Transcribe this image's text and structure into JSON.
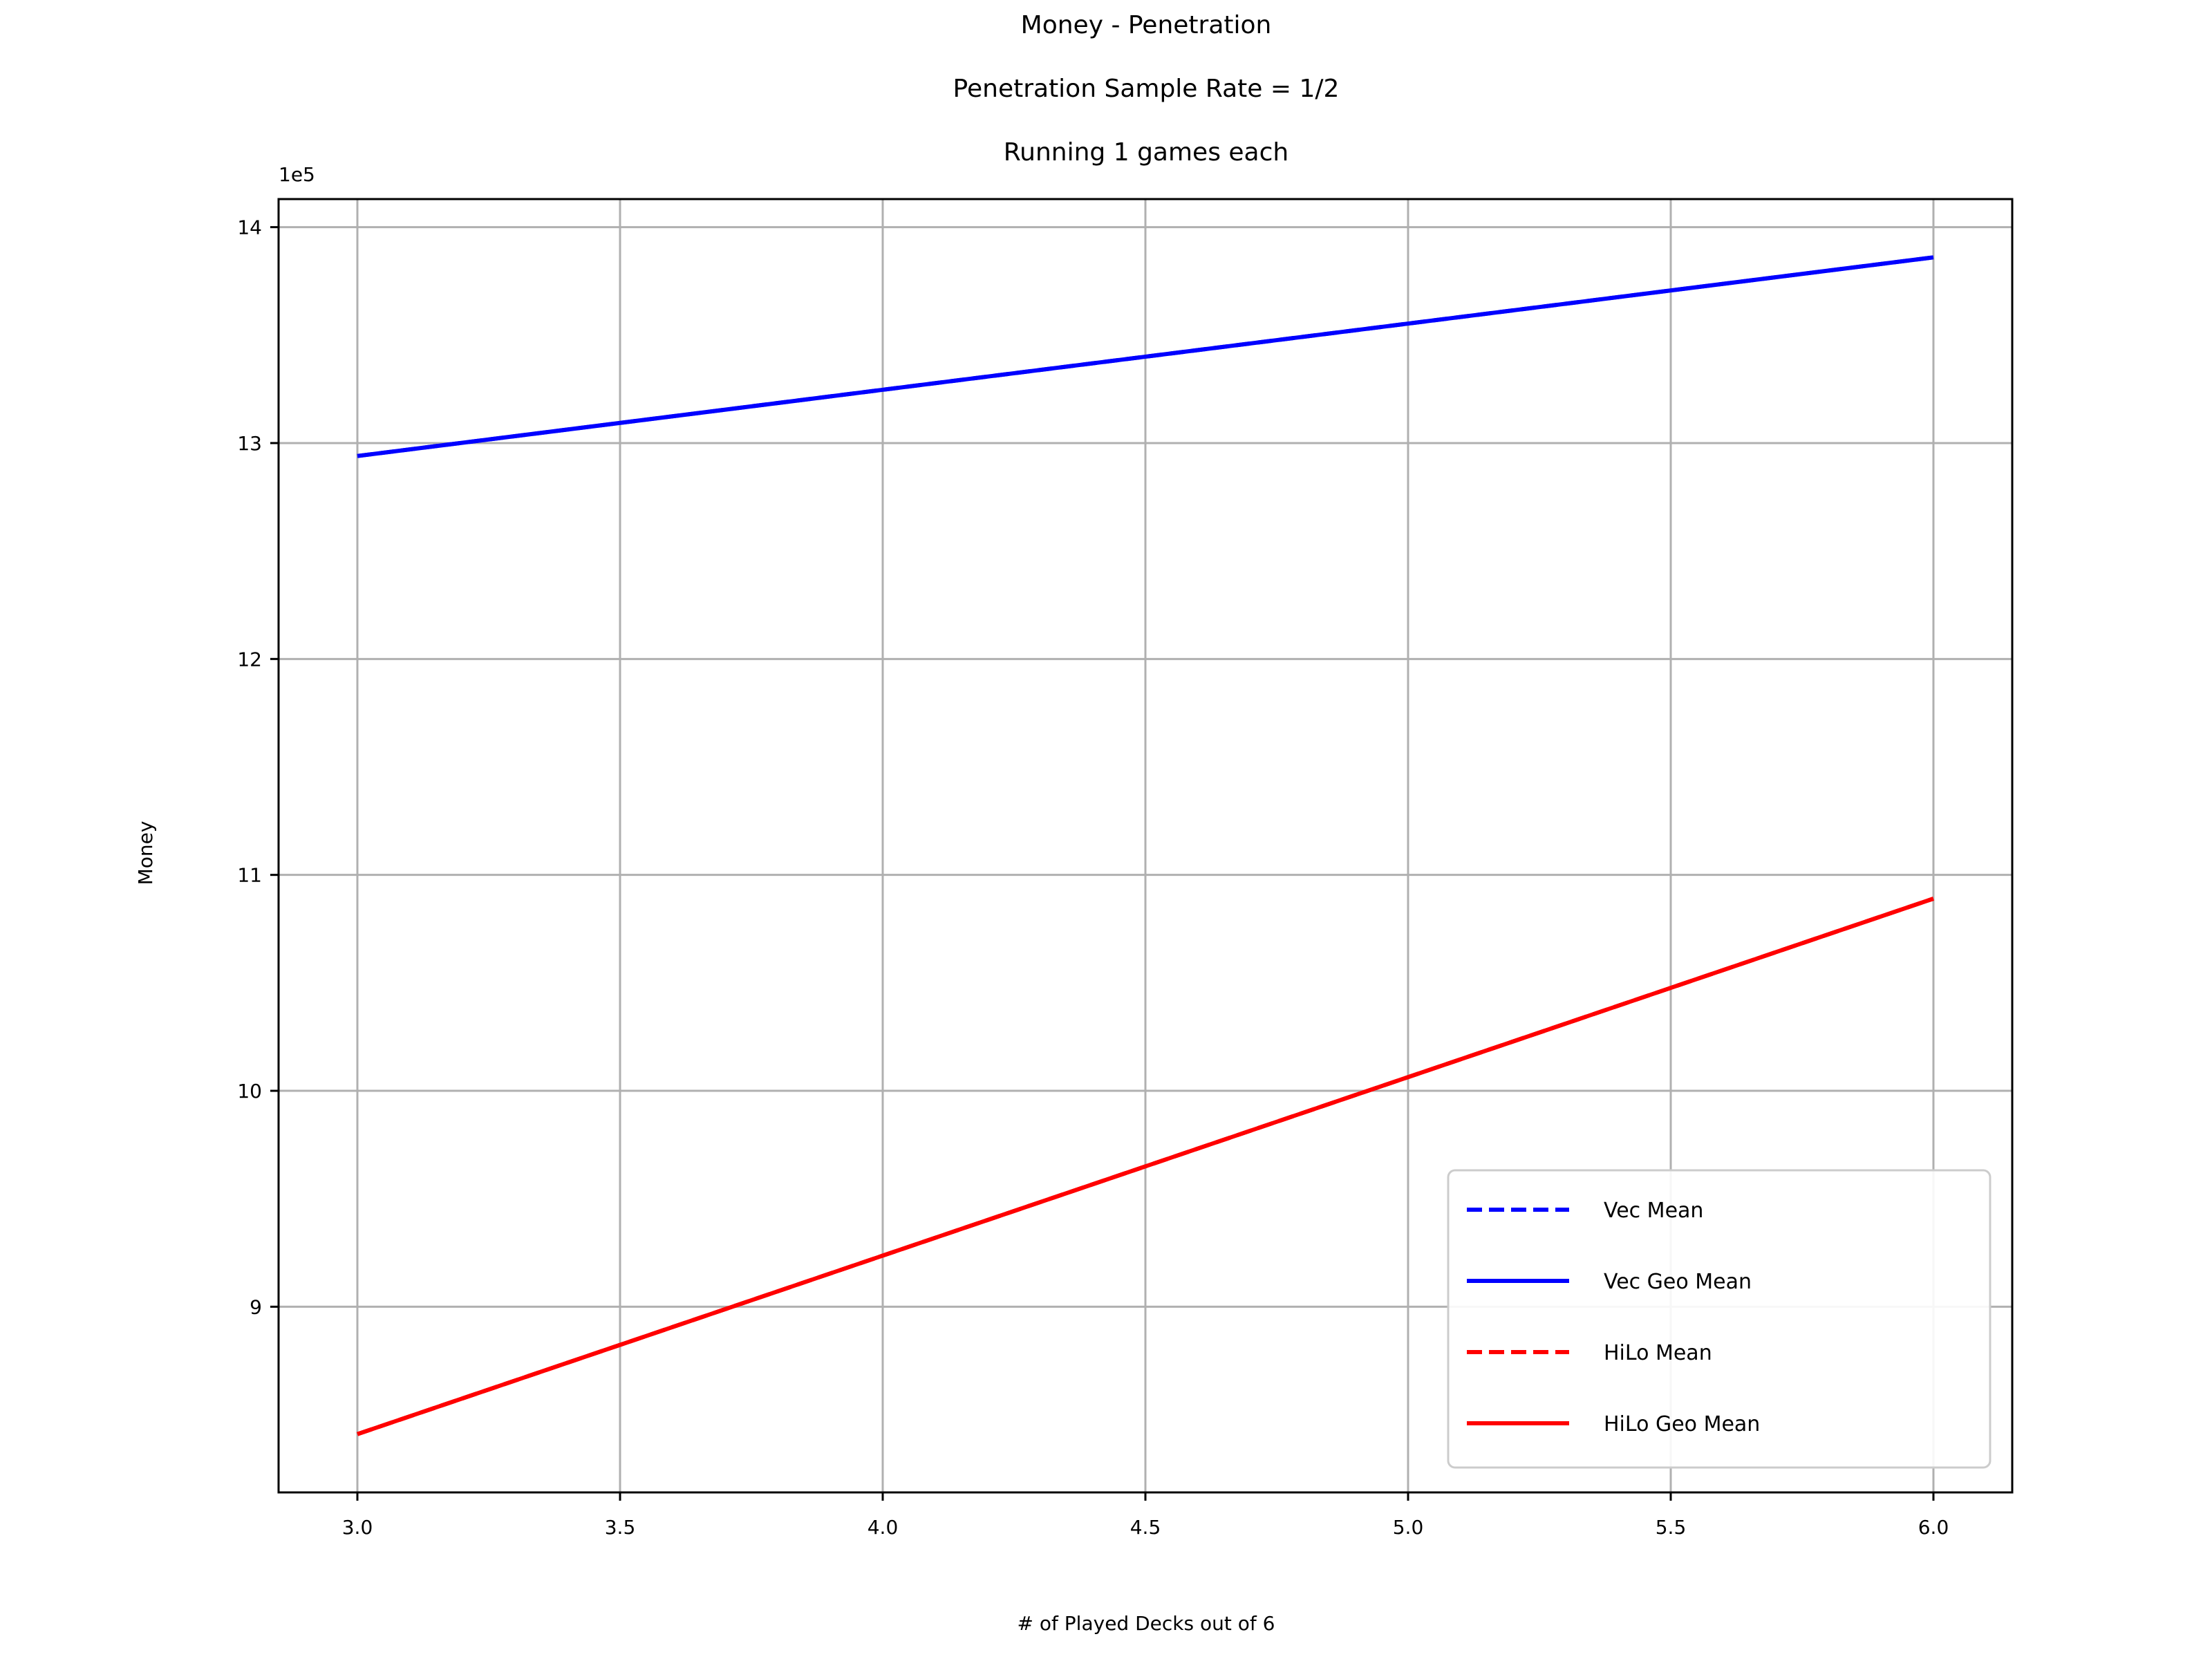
{
  "chart_data": {
    "type": "line",
    "title": [
      "Money - Penetration",
      "Penetration Sample Rate = 1/2",
      "Running 1 games each"
    ],
    "xlabel": "# of Played Decks out of 6",
    "ylabel": "Money",
    "y_offset_text": "1e5",
    "xlim": [
      2.85,
      6.15
    ],
    "ylim": [
      8.14,
      14.13
    ],
    "x_ticks": [
      3.0,
      3.5,
      4.0,
      4.5,
      5.0,
      5.5,
      6.0
    ],
    "x_tick_labels": [
      "3.0",
      "3.5",
      "4.0",
      "4.5",
      "5.0",
      "5.5",
      "6.0"
    ],
    "y_ticks": [
      9,
      10,
      11,
      12,
      13,
      14
    ],
    "y_tick_labels": [
      "9",
      "10",
      "11",
      "12",
      "13",
      "14"
    ],
    "grid": true,
    "legend_position": "lower-right",
    "series": [
      {
        "name": "Vec Mean",
        "color": "#0000ff",
        "style": "dashed",
        "x": [
          3,
          6
        ],
        "values": [
          12.94,
          13.86
        ]
      },
      {
        "name": "Vec Geo Mean",
        "color": "#0000ff",
        "style": "solid",
        "x": [
          3,
          6
        ],
        "values": [
          12.94,
          13.86
        ]
      },
      {
        "name": "HiLo Mean",
        "color": "#ff0000",
        "style": "dashed",
        "x": [
          3,
          6
        ],
        "values": [
          8.41,
          10.89
        ]
      },
      {
        "name": "HiLo Geo Mean",
        "color": "#ff0000",
        "style": "solid",
        "x": [
          3,
          6
        ],
        "values": [
          8.41,
          10.89
        ]
      }
    ]
  }
}
